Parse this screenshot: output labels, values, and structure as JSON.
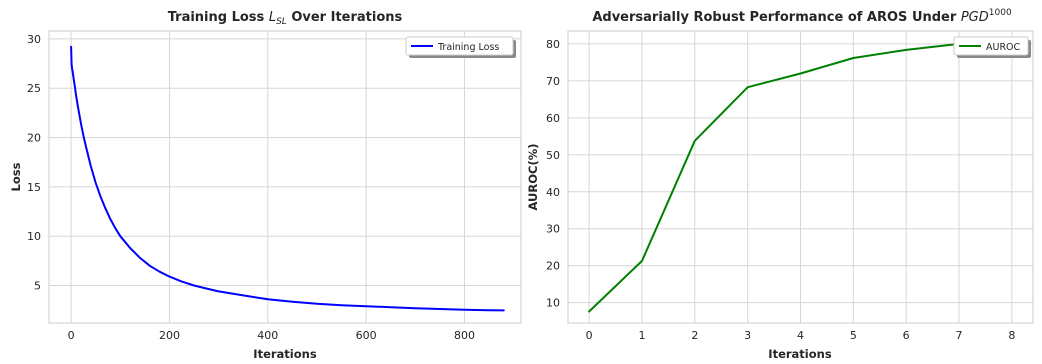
{
  "chart_data": [
    {
      "type": "line",
      "title": "Training Loss",
      "title_math": "L",
      "title_math_sub": "SL",
      "title_suffix": "Over Iterations",
      "xlabel": "Iterations",
      "ylabel": "Loss",
      "xlim": [
        -45,
        915
      ],
      "ylim": [
        1.2,
        30.8
      ],
      "xticks": [
        0,
        200,
        400,
        600,
        800
      ],
      "yticks": [
        5,
        10,
        15,
        20,
        25,
        30
      ],
      "grid": true,
      "legend": "top-right",
      "series": [
        {
          "name": "Training Loss",
          "color": "#0000ff",
          "x": [
            0,
            1,
            2,
            3,
            5,
            8,
            10,
            15,
            20,
            25,
            30,
            40,
            50,
            60,
            70,
            80,
            90,
            100,
            120,
            140,
            160,
            180,
            200,
            225,
            250,
            275,
            300,
            350,
            400,
            450,
            500,
            550,
            600,
            650,
            700,
            750,
            800,
            850,
            880
          ],
          "y": [
            29.2,
            27.4,
            27.0,
            26.7,
            26.0,
            25.0,
            24.3,
            22.8,
            21.4,
            20.2,
            19.1,
            17.1,
            15.4,
            14.0,
            12.8,
            11.7,
            10.8,
            10.0,
            8.8,
            7.8,
            7.0,
            6.4,
            5.9,
            5.4,
            5.0,
            4.7,
            4.4,
            4.0,
            3.6,
            3.35,
            3.15,
            3.0,
            2.9,
            2.8,
            2.7,
            2.62,
            2.55,
            2.5,
            2.48
          ]
        }
      ]
    },
    {
      "type": "line",
      "title": "Adversarially Robust Performance of AROS Under",
      "title_math": "PGD",
      "title_math_sup": "1000",
      "xlabel": "Iterations",
      "ylabel": "AUROC(%)",
      "xlim": [
        -0.4,
        8.4
      ],
      "ylim": [
        4.5,
        83.5
      ],
      "xticks": [
        0,
        1,
        2,
        3,
        4,
        5,
        6,
        7,
        8
      ],
      "yticks": [
        10,
        20,
        30,
        40,
        50,
        60,
        70,
        80
      ],
      "grid": true,
      "legend": "top-right",
      "series": [
        {
          "name": "AUROC",
          "color": "#008000",
          "x": [
            0,
            1,
            2,
            3,
            4,
            5,
            6,
            7,
            8
          ],
          "y": [
            7.6,
            21.3,
            53.8,
            68.3,
            72.0,
            76.2,
            78.4,
            80.0,
            81.5
          ]
        }
      ]
    }
  ]
}
